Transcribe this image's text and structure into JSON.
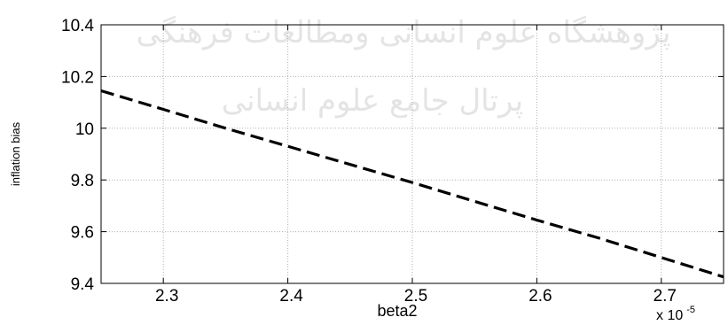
{
  "chart_data": {
    "type": "line",
    "xlabel": "beta2",
    "ylabel": "inflation bias",
    "x_multiplier": "x 10",
    "x_multiplier_exp": "-5",
    "xlim": [
      2.25,
      2.75
    ],
    "ylim": [
      9.4,
      10.4
    ],
    "xticks": [
      2.3,
      2.4,
      2.5,
      2.6,
      2.7
    ],
    "xtick_labels": [
      "2.3",
      "2.4",
      "2.5",
      "2.6",
      "2.7"
    ],
    "yticks": [
      9.4,
      9.6,
      9.8,
      10.0,
      10.2,
      10.4
    ],
    "ytick_labels": [
      "9.4",
      "9.6",
      "9.8",
      "10",
      "10.2",
      "10.4"
    ],
    "grid": true,
    "series": [
      {
        "style": "dashed",
        "color": "#000000",
        "x": [
          2.25,
          2.3,
          2.35,
          2.4,
          2.45,
          2.5,
          2.55,
          2.6,
          2.65,
          2.7,
          2.75
        ],
        "y": [
          10.145,
          10.073,
          10.0,
          9.93,
          9.86,
          9.79,
          9.717,
          9.645,
          9.575,
          9.5,
          9.425
        ]
      }
    ]
  },
  "watermark": {
    "line1": "پژوهشگاه علوم انسانی ومطالعات فرهنگی",
    "line2": "پرتال جامع علوم انسانی"
  }
}
